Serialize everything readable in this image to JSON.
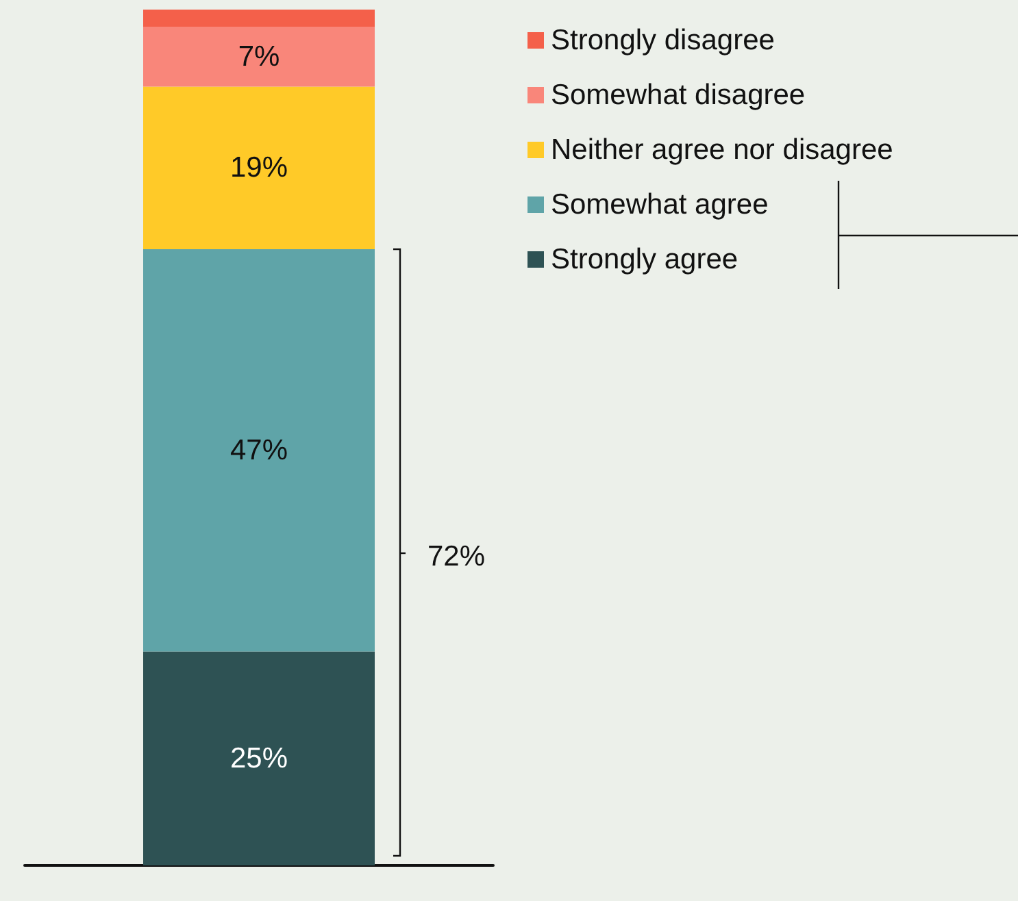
{
  "chart_data": {
    "type": "bar",
    "stacked": true,
    "categories": [
      null
    ],
    "series": [
      {
        "name": "Strongly agree",
        "color": "#2e5254",
        "values": [
          25
        ],
        "value_labels": [
          "25%"
        ]
      },
      {
        "name": "Somewhat agree",
        "color": "#5fa4a8",
        "values": [
          47
        ],
        "value_labels": [
          "47%"
        ]
      },
      {
        "name": "Neither agree nor disagree",
        "color": "#ffca28",
        "values": [
          19
        ],
        "value_labels": [
          "19%"
        ]
      },
      {
        "name": "Somewhat disagree",
        "color": "#f9867a",
        "values": [
          7
        ],
        "value_labels": [
          "7%"
        ]
      },
      {
        "name": "Strongly disagree",
        "color": "#f4604a",
        "values": [
          2
        ],
        "value_labels": [
          null
        ]
      }
    ],
    "ylim": [
      0,
      100
    ],
    "legend": "top right",
    "annotations": [
      "72%"
    ]
  }
}
